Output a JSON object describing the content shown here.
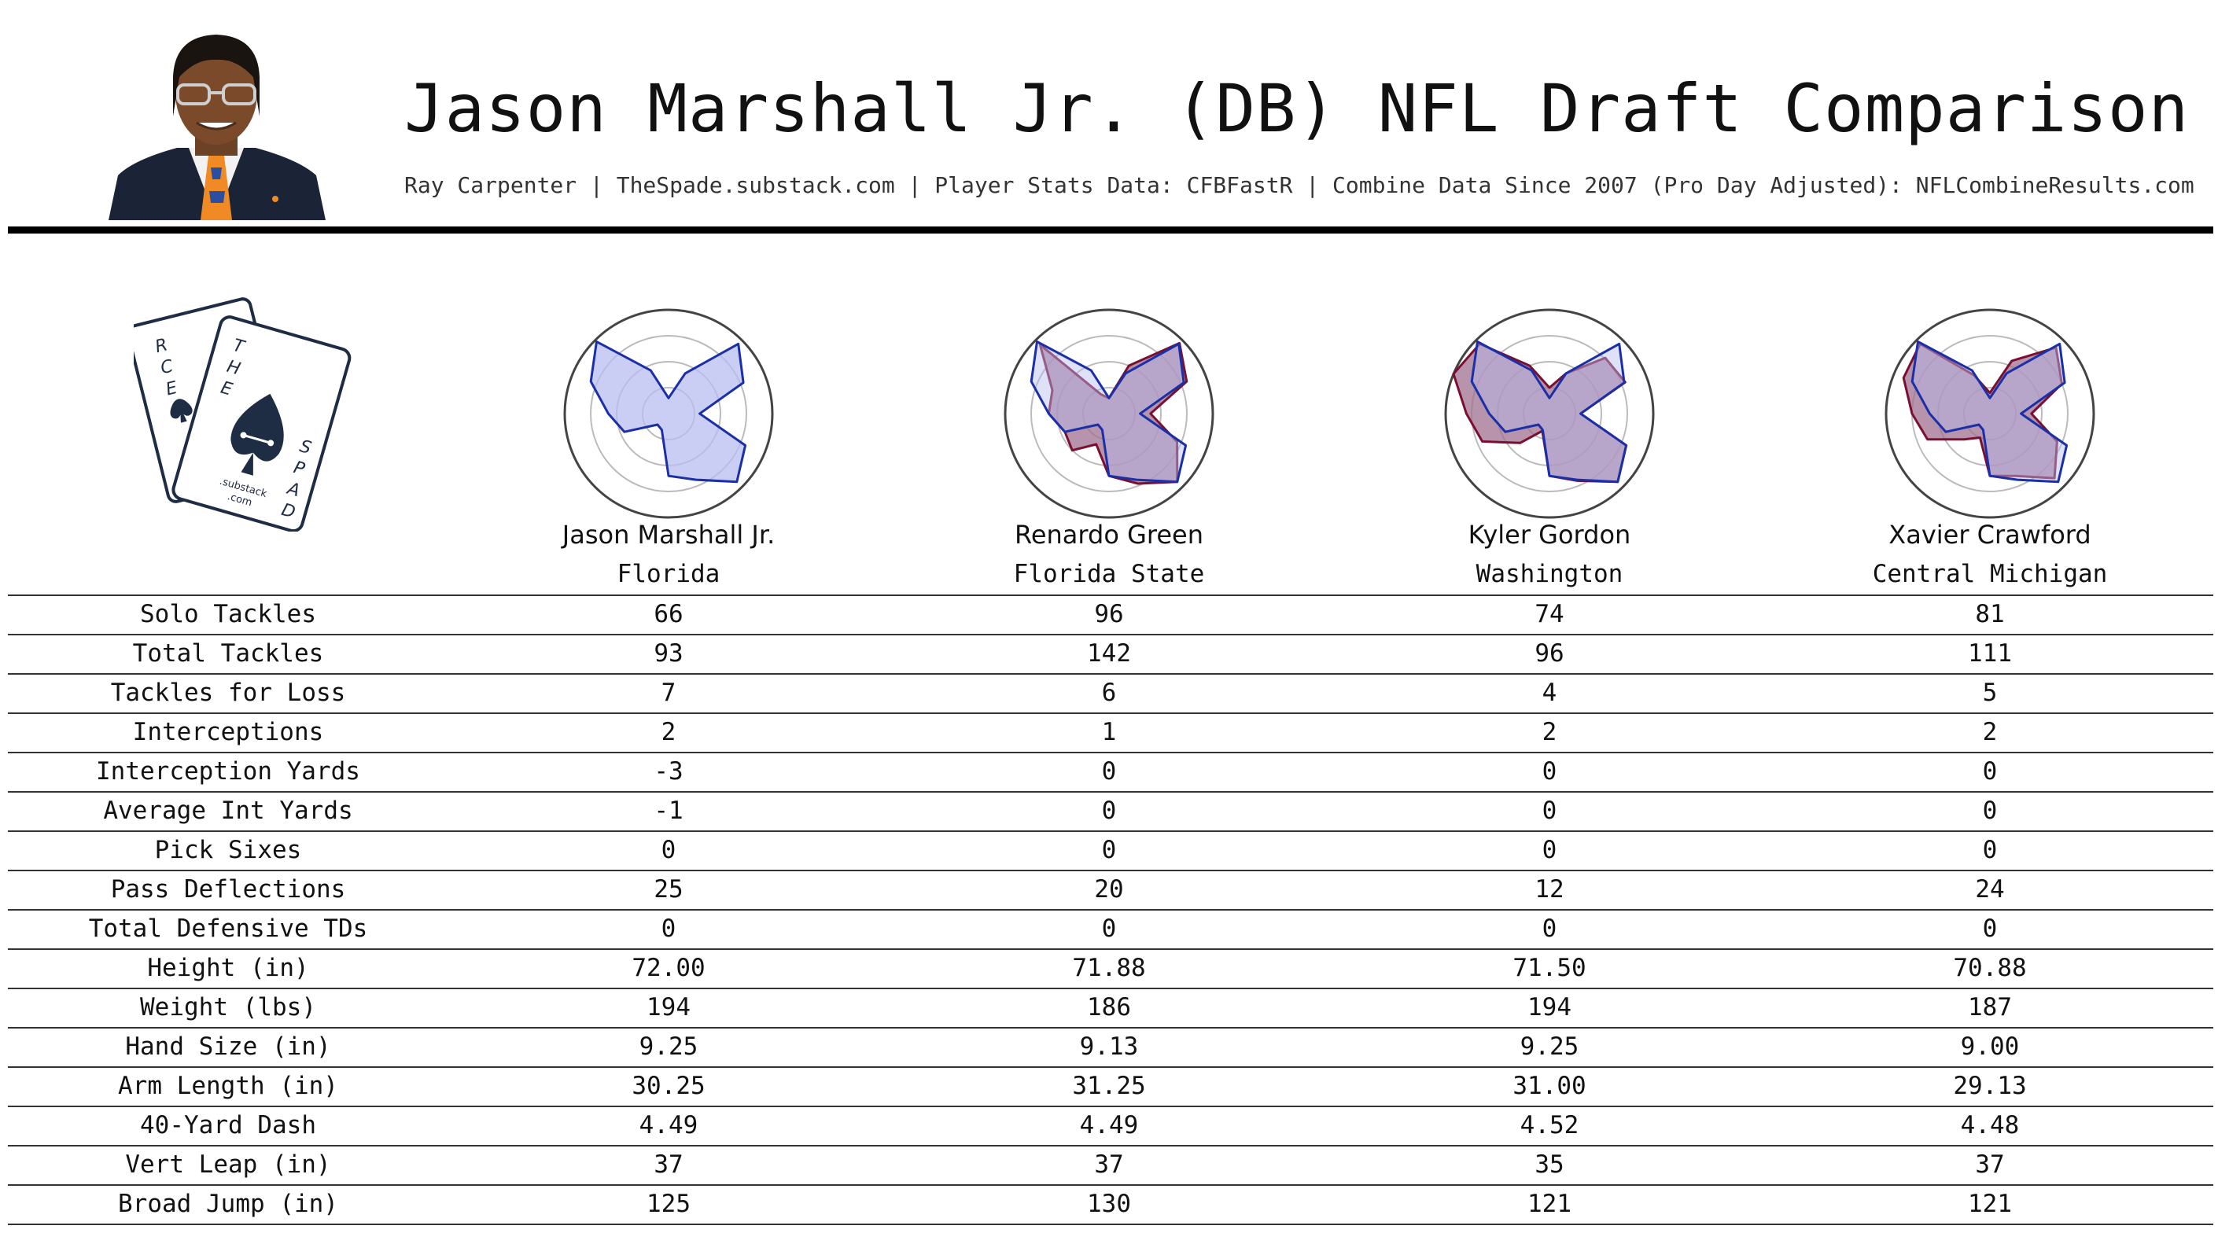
{
  "header": {
    "title": "Jason Marshall Jr. (DB) NFL Draft Comparison",
    "subtitle": "Ray Carpenter | TheSpade.substack.com | Player Stats Data: CFBFastR | Combine Data Since 2007 (Pro Day Adjusted): NFLCombineResults.com"
  },
  "logo": {
    "back_card_text": "RCE",
    "front_card_text": "THE SPADE",
    "small_text_1": ".substack",
    "small_text_2": ".com"
  },
  "colors": {
    "subject_line": "#1a2fa8",
    "subject_fill": "#b9bdf0",
    "comp_line": "#7a1030",
    "comp_fill": "#a07090",
    "ring": "#bbbbbb",
    "outer_ring": "#444444"
  },
  "players": [
    {
      "name": "Jason Marshall Jr.",
      "school": "Florida"
    },
    {
      "name": "Renardo Green",
      "school": "Florida State"
    },
    {
      "name": "Kyler Gordon",
      "school": "Washington"
    },
    {
      "name": "Xavier Crawford",
      "school": "Central Michigan"
    }
  ],
  "stats": [
    {
      "label": "Solo Tackles",
      "values": [
        "66",
        "96",
        "74",
        "81"
      ]
    },
    {
      "label": "Total Tackles",
      "values": [
        "93",
        "142",
        "96",
        "111"
      ]
    },
    {
      "label": "Tackles for Loss",
      "values": [
        "7",
        "6",
        "4",
        "5"
      ]
    },
    {
      "label": "Interceptions",
      "values": [
        "2",
        "1",
        "2",
        "2"
      ]
    },
    {
      "label": "Interception Yards",
      "values": [
        "-3",
        "0",
        "0",
        "0"
      ]
    },
    {
      "label": "Average Int Yards",
      "values": [
        "-1",
        "0",
        "0",
        "0"
      ]
    },
    {
      "label": "Pick Sixes",
      "values": [
        "0",
        "0",
        "0",
        "0"
      ]
    },
    {
      "label": "Pass Deflections",
      "values": [
        "25",
        "20",
        "12",
        "24"
      ]
    },
    {
      "label": "Total Defensive TDs",
      "values": [
        "0",
        "0",
        "0",
        "0"
      ]
    },
    {
      "label": "Height (in)",
      "values": [
        "72.00",
        "71.88",
        "71.50",
        "70.88"
      ]
    },
    {
      "label": "Weight (lbs)",
      "values": [
        "194",
        "186",
        "194",
        "187"
      ]
    },
    {
      "label": "Hand Size (in)",
      "values": [
        "9.25",
        "9.13",
        "9.25",
        "9.00"
      ]
    },
    {
      "label": "Arm Length (in)",
      "values": [
        "30.25",
        "31.25",
        "31.00",
        "29.13"
      ]
    },
    {
      "label": "40-Yard Dash",
      "values": [
        "4.49",
        "4.49",
        "4.52",
        "4.48"
      ]
    },
    {
      "label": "Vert Leap (in)",
      "values": [
        "37",
        "37",
        "35",
        "37"
      ]
    },
    {
      "label": "Broad Jump (in)",
      "values": [
        "125",
        "130",
        "121",
        "121"
      ]
    }
  ],
  "chart_data": {
    "type": "radar",
    "axis_count": 16,
    "range": [
      0,
      1
    ],
    "rings": 4,
    "subject": "Jason Marshall Jr.",
    "subject_profile": [
      0.15,
      0.42,
      0.95,
      0.78,
      0.3,
      0.8,
      0.93,
      0.69,
      0.6,
      0.17,
      0.15,
      0.46,
      0.58,
      0.81,
      0.98,
      0.45
    ],
    "comparisons": [
      {
        "player": "Renardo Green",
        "profile": [
          0.15,
          0.5,
          0.96,
          0.81,
          0.4,
          0.71,
          0.93,
          0.73,
          0.6,
          0.32,
          0.5,
          0.46,
          0.58,
          0.59,
          0.94,
          0.2
        ]
      },
      {
        "player": "Kyler Gordon",
        "profile": [
          0.25,
          0.42,
          0.76,
          0.79,
          0.3,
          0.8,
          0.93,
          0.7,
          0.6,
          0.18,
          0.4,
          0.7,
          0.8,
          1.0,
          0.95,
          0.5
        ]
      },
      {
        "player": "Xavier Crawford",
        "profile": [
          0.2,
          0.55,
          0.9,
          0.75,
          0.4,
          0.7,
          0.88,
          0.65,
          0.6,
          0.25,
          0.35,
          0.65,
          0.75,
          0.9,
          0.95,
          0.4
        ]
      }
    ]
  }
}
